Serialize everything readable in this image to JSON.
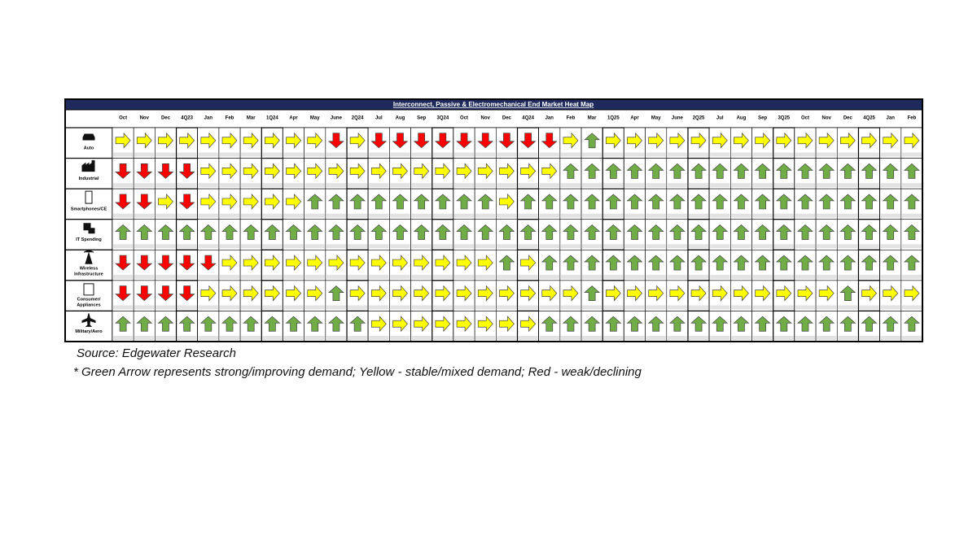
{
  "table": {
    "title": "Interconnect, Passive & Electromechanical End Market Heat Map",
    "columns": [
      "Oct",
      "Nov",
      "Dec",
      "4Q23",
      "Jan",
      "Feb",
      "Mar",
      "1Q24",
      "Apr",
      "May",
      "June",
      "2Q24",
      "Jul",
      "Aug",
      "Sep",
      "3Q24",
      "Oct",
      "Nov",
      "Dec",
      "4Q24",
      "Jan",
      "Feb",
      "Mar",
      "1Q25",
      "Apr",
      "May",
      "June",
      "2Q25",
      "Jul",
      "Aug",
      "Sep",
      "3Q25",
      "Oct",
      "Nov",
      "Dec",
      "4Q25",
      "Jan",
      "Feb"
    ],
    "arrow_colors": {
      "Green": "#70ad47",
      "Yellow": "#ffff00",
      "Red": "#ff0000"
    },
    "rows": [
      {
        "label": [
          "Auto"
        ],
        "cells": [
          "Yellow",
          "Yellow",
          "Yellow",
          "Yellow",
          "Yellow",
          "Yellow",
          "Yellow",
          "Yellow",
          "Yellow",
          "Yellow",
          "Red",
          "Yellow",
          "Red",
          "Red",
          "Red",
          "Red",
          "Red",
          "Red",
          "Red",
          "Red",
          "Red",
          "Yellow",
          "Green",
          "Yellow",
          "Yellow",
          "Yellow",
          "Yellow",
          "Yellow",
          "Yellow",
          "Yellow",
          "Yellow",
          "Yellow",
          "Yellow",
          "Yellow",
          "Yellow",
          "Yellow",
          "Yellow",
          "Yellow"
        ]
      },
      {
        "label": [
          "Industrial"
        ],
        "cells": [
          "Red",
          "Red",
          "Red",
          "Red",
          "Yellow",
          "Yellow",
          "Yellow",
          "Yellow",
          "Yellow",
          "Yellow",
          "Yellow",
          "Yellow",
          "Yellow",
          "Yellow",
          "Yellow",
          "Yellow",
          "Yellow",
          "Yellow",
          "Yellow",
          "Yellow",
          "Yellow",
          "Green",
          "Green",
          "Green",
          "Green",
          "Green",
          "Green",
          "Green",
          "Green",
          "Green",
          "Green",
          "Green",
          "Green",
          "Green",
          "Green",
          "Green",
          "Green",
          "Green"
        ]
      },
      {
        "label": [
          "Smartphones/CE"
        ],
        "cells": [
          "Red",
          "Red",
          "Yellow",
          "Red",
          "Yellow",
          "Yellow",
          "Yellow",
          "Yellow",
          "Yellow",
          "Green",
          "Green",
          "Green",
          "Green",
          "Green",
          "Green",
          "Green",
          "Green",
          "Green",
          "Yellow",
          "Green",
          "Green",
          "Green",
          "Green",
          "Green",
          "Green",
          "Green",
          "Green",
          "Green",
          "Green",
          "Green",
          "Green",
          "Green",
          "Green",
          "Green",
          "Green",
          "Green",
          "Green",
          "Green"
        ]
      },
      {
        "label": [
          "IT Spending"
        ],
        "cells": [
          "Green",
          "Green",
          "Green",
          "Green",
          "Green",
          "Green",
          "Green",
          "Green",
          "Green",
          "Green",
          "Green",
          "Green",
          "Green",
          "Green",
          "Green",
          "Green",
          "Green",
          "Green",
          "Green",
          "Green",
          "Green",
          "Green",
          "Green",
          "Green",
          "Green",
          "Green",
          "Green",
          "Green",
          "Green",
          "Green",
          "Green",
          "Green",
          "Green",
          "Green",
          "Green",
          "Green",
          "Green",
          "Green"
        ]
      },
      {
        "label": [
          "Wireless",
          "Infrastructure"
        ],
        "cells": [
          "Red",
          "Red",
          "Red",
          "Red",
          "Red",
          "Yellow",
          "Yellow",
          "Yellow",
          "Yellow",
          "Yellow",
          "Yellow",
          "Yellow",
          "Yellow",
          "Yellow",
          "Yellow",
          "Yellow",
          "Yellow",
          "Yellow",
          "Green",
          "Yellow",
          "Green",
          "Green",
          "Green",
          "Green",
          "Green",
          "Green",
          "Green",
          "Green",
          "Green",
          "Green",
          "Green",
          "Green",
          "Green",
          "Green",
          "Green",
          "Green",
          "Green",
          "Green"
        ]
      },
      {
        "label": [
          "Consumer/",
          "Appliances"
        ],
        "cells": [
          "Red",
          "Red",
          "Red",
          "Red",
          "Yellow",
          "Yellow",
          "Yellow",
          "Yellow",
          "Yellow",
          "Yellow",
          "Green",
          "Yellow",
          "Yellow",
          "Yellow",
          "Yellow",
          "Yellow",
          "Yellow",
          "Yellow",
          "Yellow",
          "Yellow",
          "Yellow",
          "Yellow",
          "Green",
          "Yellow",
          "Yellow",
          "Yellow",
          "Yellow",
          "Yellow",
          "Yellow",
          "Yellow",
          "Yellow",
          "Yellow",
          "Yellow",
          "Yellow",
          "Green",
          "Yellow",
          "Yellow",
          "Yellow"
        ]
      },
      {
        "label": [
          "Military/Aero"
        ],
        "cells": [
          "Green",
          "Green",
          "Green",
          "Green",
          "Green",
          "Green",
          "Green",
          "Green",
          "Green",
          "Green",
          "Green",
          "Green",
          "Yellow",
          "Yellow",
          "Yellow",
          "Yellow",
          "Yellow",
          "Yellow",
          "Yellow",
          "Yellow",
          "Green",
          "Green",
          "Green",
          "Green",
          "Green",
          "Green",
          "Green",
          "Green",
          "Green",
          "Green",
          "Green",
          "Green",
          "Green",
          "Green",
          "Green",
          "Green",
          "Green",
          "Green"
        ]
      }
    ],
    "source": "Source: Edgewater Research",
    "note": "* Green Arrow represents strong/improving demand; Yellow - stable/mixed demand; Red - weak/declining"
  }
}
